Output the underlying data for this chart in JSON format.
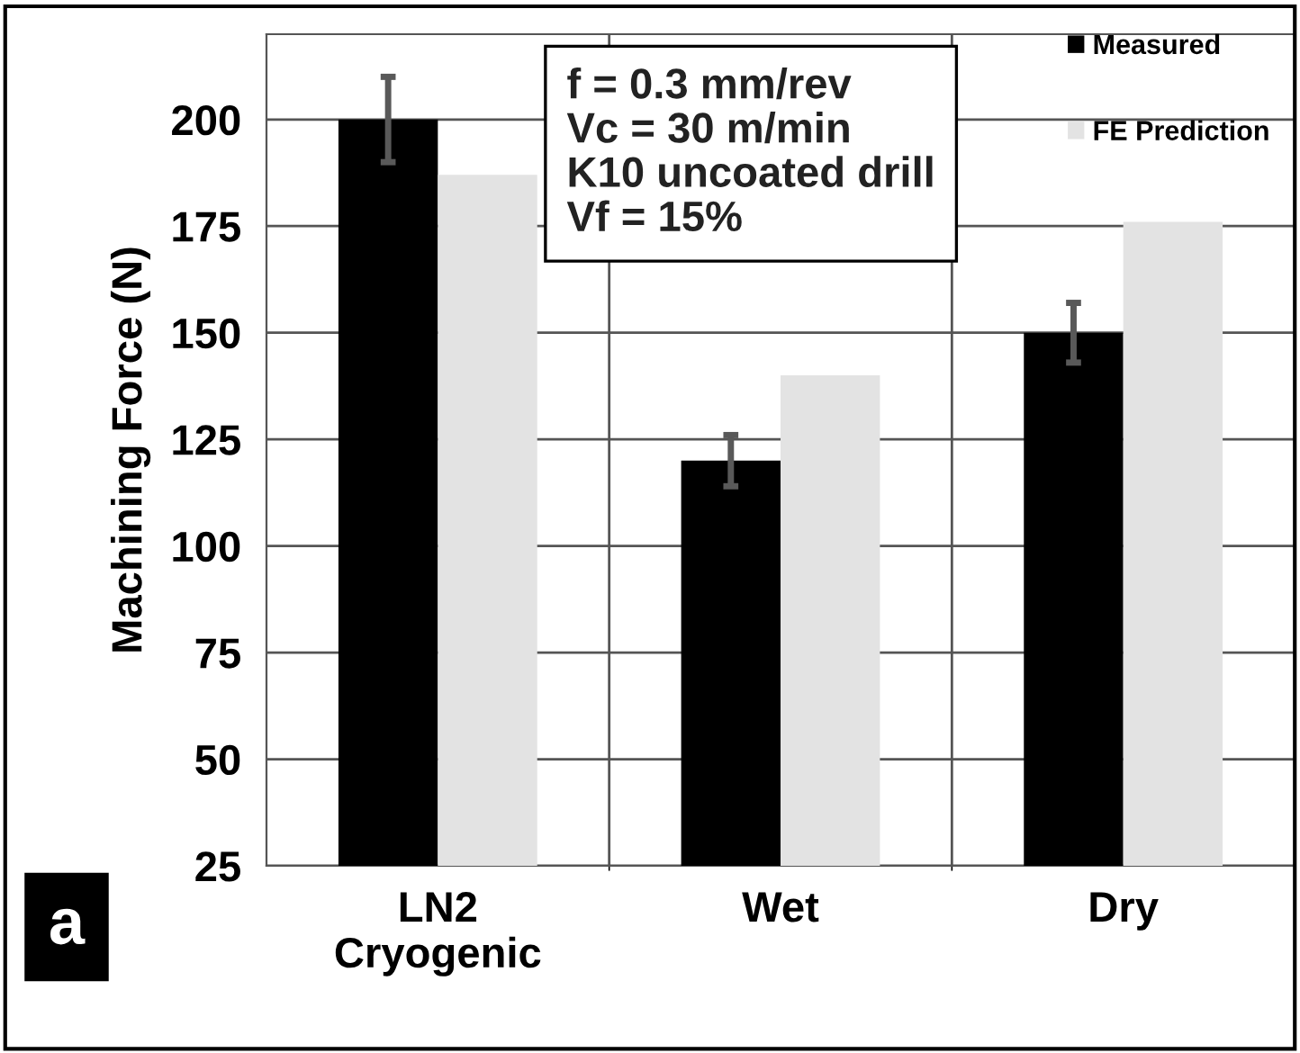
{
  "chart_data": {
    "type": "bar",
    "ylabel": "Machining Force (N)",
    "categories": [
      "LN2\nCryogenic",
      "Wet",
      "Dry"
    ],
    "series": [
      {
        "name": "Measured",
        "color": "#000000",
        "values": [
          200,
          120,
          150
        ],
        "errors": [
          10,
          6,
          7
        ]
      },
      {
        "name": "FE Prediction",
        "color": "#e3e3e3",
        "values": [
          187,
          140,
          176
        ]
      }
    ],
    "ylim": [
      25,
      220
    ],
    "yticks": [
      25,
      50,
      75,
      100,
      125,
      150,
      175,
      200
    ],
    "grid": true,
    "legend": "top right",
    "annotations": [
      "f = 0.3 mm/rev\nVc = 30 m/min\nK10 uncoated drill\nVf = 15%",
      "a"
    ]
  }
}
